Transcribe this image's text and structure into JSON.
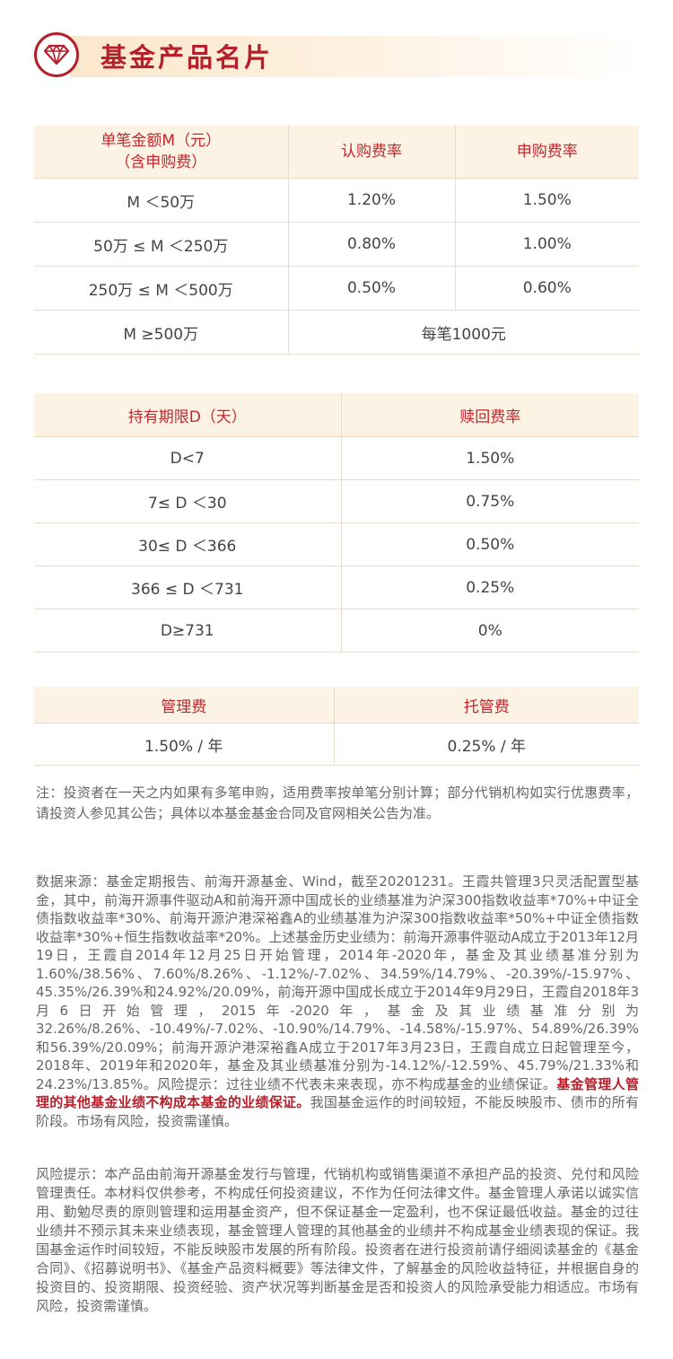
{
  "header": {
    "title": "基金产品名片",
    "icon": "diamond-icon",
    "accent": "#b5202b"
  },
  "subscription_table": {
    "headers": [
      "单笔金额M（元）",
      "（含申购费）",
      "认购费率",
      "申购费率"
    ],
    "rows": [
      [
        "M ＜50万",
        "1.20%",
        "1.50%"
      ],
      [
        "50万 ≤ M ＜250万",
        "0.80%",
        "1.00%"
      ],
      [
        "250万 ≤ M ＜500万",
        "0.50%",
        "0.60%"
      ]
    ],
    "last_row": {
      "range": "M ≥500万",
      "fee": "每笔1000元"
    }
  },
  "redemption_table": {
    "headers": [
      "持有期限D（天）",
      "赎回费率"
    ],
    "rows": [
      [
        "D<7",
        "1.50%"
      ],
      [
        "7≤ D ＜30",
        "0.75%"
      ],
      [
        "30≤ D ＜366",
        "0.50%"
      ],
      [
        "366 ≤ D ＜731",
        "0.25%"
      ],
      [
        "D≥731",
        "0%"
      ]
    ]
  },
  "management_table": {
    "headers": [
      "管理费",
      "托管费"
    ],
    "values": [
      "1.50% / 年",
      "0.25% / 年"
    ]
  },
  "notes": {
    "fee_note": "注：投资者在一天之内如果有多笔申购，适用费率按单笔分别计算；部分代销机构如实行优惠费率，请投资人参见其公告；具体以本基金基金合同及官网相关公告为准。",
    "data_source": "数据来源：基金定期报告、前海开源基金、Wind，截至20201231。王霞共管理3只灵活配置型基金，其中，前海开源事件驱动A和前海开源中国成长的业绩基准为沪深300指数收益率*70%+中证全债指数收益率*30%、前海开源沪港深裕鑫A的业绩基准为沪深300指数收益率*50%+中证全债指数收益率*30%+恒生指数收益率*20%。上述基金历史业绩为：前海开源事件驱动A成立于2013年12月19日，王霞自2014年12月25日开始管理，2014年-2020年，基金及其业绩基准分别为1.60%/38.56%、7.60%/8.26%、-1.12%/-7.02%、34.59%/14.79%、-20.39%/-15.97%、45.35%/26.39%和24.92%/20.09%，前海开源中国成长成立于2014年9月29日，王霞自2018年3月6日开始管理，2015年-2020年，基金及其业绩基准分别为32.26%/8.26%、-10.49%/-7.02%、-10.90%/14.79%、-14.58%/-15.97%、54.89%/26.39%和56.39%/20.09%；前海开源沪港深裕鑫A成立于2017年3月23日，王霞自成立日起管理至今，2018年、2019年和2020年，基金及其业绩基准分别为-14.12%/-12.59%、45.79%/21.33%和24.23%/13.85%。风险提示：过往业绩不代表未来表现，亦不构成基金的业绩保证。",
    "data_source_highlight": "基金管理人管理的其他基金业绩不构成本基金的业绩保证。",
    "data_source_tail": "我国基金运作的时间较短，不能反映股市、债市的所有阶段。市场有风险，投资需谨慎。",
    "risk": "风险提示：本产品由前海开源基金发行与管理，代销机构或销售渠道不承担产品的投资、兑付和风险管理责任。本材料仅供参考，不构成任何投资建议，不作为任何法律文件。基金管理人承诺以诚实信用、勤勉尽责的原则管理和运用基金资产，但不保证基金一定盈利，也不保证最低收益。基金的过往业绩并不预示其未来业绩表现，基金管理人管理的其他基金的业绩并不构成基金业绩表现的保证。我国基金运作时间较短，不能反映股市发展的所有阶段。投资者在进行投资前请仔细阅读基金的《基金合同》、《招募说明书》、《基金产品资料概要》等法律文件，了解基金的风险收益特征，并根据自身的投资目的、投资期限、投资经验、资产状况等判断基金是否和投资人的风险承受能力相适应。市场有风险，投资需谨慎。"
  }
}
